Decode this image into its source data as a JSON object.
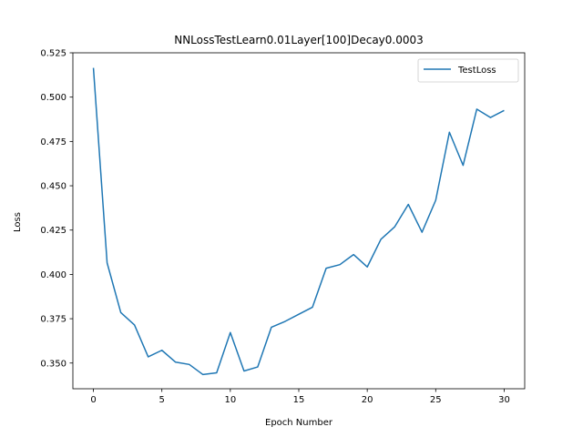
{
  "chart_data": {
    "type": "line",
    "title": "NNLossTestLearn0.01Layer[100]Decay0.0003",
    "xlabel": "Epoch Number",
    "ylabel": "Loss",
    "xlim": [
      -1.5,
      31.5
    ],
    "ylim": [
      0.3355,
      0.525
    ],
    "xticks": [
      0,
      5,
      10,
      15,
      20,
      25,
      30
    ],
    "yticks": [
      0.35,
      0.375,
      0.4,
      0.425,
      0.45,
      0.475,
      0.5,
      0.525
    ],
    "ytick_labels": [
      "0.350",
      "0.375",
      "0.400",
      "0.425",
      "0.450",
      "0.475",
      "0.500",
      "0.525"
    ],
    "grid": false,
    "legend": {
      "position": "top-right"
    },
    "series": [
      {
        "name": "TestLoss",
        "color": "#1f77b4",
        "x": [
          0,
          1,
          2,
          3,
          4,
          5,
          6,
          7,
          8,
          9,
          10,
          11,
          12,
          13,
          14,
          15,
          16,
          17,
          18,
          19,
          20,
          21,
          22,
          23,
          24,
          25,
          26,
          27,
          28,
          29,
          30
        ],
        "values": [
          0.5165,
          0.4065,
          0.3785,
          0.3715,
          0.3535,
          0.3572,
          0.3505,
          0.3492,
          0.3435,
          0.3445,
          0.3672,
          0.3455,
          0.3478,
          0.3702,
          0.3735,
          0.3775,
          0.3815,
          0.4035,
          0.4055,
          0.4112,
          0.4042,
          0.4198,
          0.4268,
          0.4395,
          0.4238,
          0.4418,
          0.4802,
          0.4615,
          0.4932,
          0.4885,
          0.4925
        ]
      }
    ]
  }
}
